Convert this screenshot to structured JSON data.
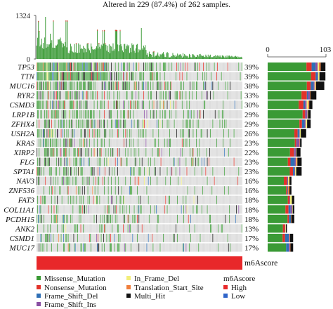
{
  "title": "Altered in 229 (87.4%) of 262 samples.",
  "chart_data": {
    "type": "oncoplot",
    "title": "Altered in 229 (87.4%) of 262 samples.",
    "n_samples": 262,
    "n_altered": 229,
    "tmb_axis": {
      "min": 0,
      "max": 1324,
      "tick_labels": [
        "1324",
        "0"
      ]
    },
    "gene_bar_axis": {
      "min": 0,
      "max": 103,
      "tick_labels": [
        "0",
        "103"
      ]
    },
    "genes": [
      {
        "name": "TP53",
        "pct": "39%",
        "freq": 0.39
      },
      {
        "name": "TTN",
        "pct": "39%",
        "freq": 0.39
      },
      {
        "name": "MUC16",
        "pct": "38%",
        "freq": 0.38
      },
      {
        "name": "RYR2",
        "pct": "33%",
        "freq": 0.33
      },
      {
        "name": "CSMD3",
        "pct": "30%",
        "freq": 0.3
      },
      {
        "name": "LRP1B",
        "pct": "29%",
        "freq": 0.29
      },
      {
        "name": "ZFHX4",
        "pct": "29%",
        "freq": 0.29
      },
      {
        "name": "USH2A",
        "pct": "26%",
        "freq": 0.26
      },
      {
        "name": "KRAS",
        "pct": "23%",
        "freq": 0.23
      },
      {
        "name": "XIRP2",
        "pct": "22%",
        "freq": 0.22
      },
      {
        "name": "FLG",
        "pct": "23%",
        "freq": 0.23
      },
      {
        "name": "SPTA1",
        "pct": "23%",
        "freq": 0.23
      },
      {
        "name": "NAV3",
        "pct": "16%",
        "freq": 0.16
      },
      {
        "name": "ZNF536",
        "pct": "16%",
        "freq": 0.16
      },
      {
        "name": "FAT3",
        "pct": "18%",
        "freq": 0.18
      },
      {
        "name": "COL11A1",
        "pct": "18%",
        "freq": 0.18
      },
      {
        "name": "PCDH15",
        "pct": "18%",
        "freq": 0.18
      },
      {
        "name": "ANK2",
        "pct": "13%",
        "freq": 0.13
      },
      {
        "name": "CSMD1",
        "pct": "17%",
        "freq": 0.17
      },
      {
        "name": "MUC17",
        "pct": "17%",
        "freq": 0.17
      }
    ],
    "annotation_track": {
      "label": "m6Ascore",
      "value": "High"
    },
    "legend": {
      "mutation_types": [
        {
          "label": "Missense_Mutation",
          "color": "#3a9a35"
        },
        {
          "label": "Nonsense_Mutation",
          "color": "#e2322a"
        },
        {
          "label": "Frame_Shift_Del",
          "color": "#2f6fb5"
        },
        {
          "label": "Frame_Shift_Ins",
          "color": "#8a4fa3"
        },
        {
          "label": "In_Frame_Del",
          "color": "#f2ee7a"
        },
        {
          "label": "Translation_Start_Site",
          "color": "#f07e3c"
        },
        {
          "label": "Multi_Hit",
          "color": "#111111"
        }
      ],
      "annotation_title": "m6Ascore",
      "annotation_levels": [
        {
          "label": "High",
          "color": "#e8282a"
        },
        {
          "label": "Low",
          "color": "#2f64c9"
        }
      ]
    },
    "colors": {
      "empty_cell": "#d4d4d4",
      "tmb_bar": "#3a9a35",
      "background": "#ffffff"
    }
  }
}
